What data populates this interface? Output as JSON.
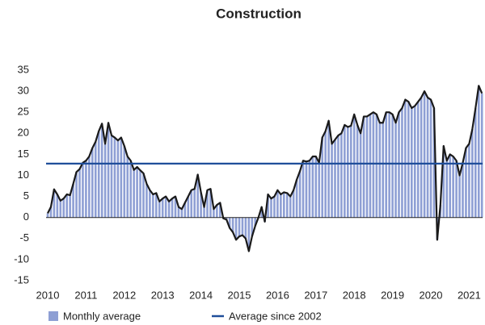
{
  "chart_data": {
    "type": "bar",
    "title": "Construction",
    "categories": [
      "2010",
      null,
      null,
      null,
      null,
      null,
      null,
      null,
      null,
      null,
      null,
      null,
      "2011",
      null,
      null,
      null,
      null,
      null,
      null,
      null,
      null,
      null,
      null,
      null,
      "2012",
      null,
      null,
      null,
      null,
      null,
      null,
      null,
      null,
      null,
      null,
      null,
      "2013",
      null,
      null,
      null,
      null,
      null,
      null,
      null,
      null,
      null,
      null,
      null,
      "2014",
      null,
      null,
      null,
      null,
      null,
      null,
      null,
      null,
      null,
      null,
      null,
      "2015",
      null,
      null,
      null,
      null,
      null,
      null,
      null,
      null,
      null,
      null,
      null,
      "2016",
      null,
      null,
      null,
      null,
      null,
      null,
      null,
      null,
      null,
      null,
      null,
      "2017",
      null,
      null,
      null,
      null,
      null,
      null,
      null,
      null,
      null,
      null,
      null,
      "2018",
      null,
      null,
      null,
      null,
      null,
      null,
      null,
      null,
      null,
      null,
      null,
      "2019",
      null,
      null,
      null,
      null,
      null,
      null,
      null,
      null,
      null,
      null,
      null,
      "2020",
      null,
      null,
      null,
      null,
      null,
      null,
      null,
      null,
      null,
      null,
      null,
      "2021",
      null,
      null,
      null,
      null
    ],
    "series": [
      {
        "name": "Monthly average",
        "color": "#8e9fd4",
        "line_color": "#1a1a1a",
        "values": [
          1,
          2.5,
          6.7,
          5.5,
          4,
          4.5,
          5.5,
          5.3,
          8,
          10.8,
          11.5,
          13,
          13.5,
          14.5,
          16.5,
          18,
          20.5,
          22.3,
          17.5,
          22.5,
          19.5,
          19,
          18.3,
          19,
          17,
          14.5,
          13.5,
          11.3,
          12,
          11.2,
          10.5,
          8,
          6.5,
          5.5,
          5.8,
          3.8,
          4.5,
          5,
          3.8,
          4.5,
          5,
          2.5,
          2,
          3.5,
          5,
          6.5,
          6.8,
          10.2,
          6,
          2.5,
          6.5,
          6.8,
          2,
          3,
          3.5,
          -0.2,
          -0.5,
          -2.5,
          -3.5,
          -5.3,
          -4.5,
          -4.2,
          -5,
          -8,
          -4.5,
          -2,
          0,
          2.5,
          -1,
          5.5,
          4.5,
          5,
          6.5,
          5.5,
          6,
          5.8,
          5,
          6.5,
          9,
          11,
          13.5,
          13.3,
          13.5,
          14.5,
          14.5,
          13,
          19,
          20.5,
          23,
          17.5,
          18.5,
          19.5,
          20,
          22,
          21.5,
          21.8,
          24.5,
          22,
          20,
          24,
          24,
          24.5,
          25,
          24.5,
          22.5,
          22.5,
          25,
          25,
          24.5,
          22.5,
          25,
          26,
          28,
          27.5,
          26,
          26.5,
          27.5,
          28.5,
          30,
          28.5,
          28,
          26,
          -5.3,
          3,
          17,
          13.5,
          15,
          14.5,
          13.5,
          10,
          13,
          16.5,
          17.5,
          21,
          26,
          31.3,
          29.5
        ]
      },
      {
        "name": "Average since 2002",
        "color": "#1f4e9a",
        "value": 12.8
      }
    ],
    "ylim": [
      -15,
      35
    ],
    "yticks": [
      -15,
      -10,
      -5,
      0,
      5,
      10,
      15,
      20,
      25,
      30,
      35
    ],
    "grid": false
  }
}
